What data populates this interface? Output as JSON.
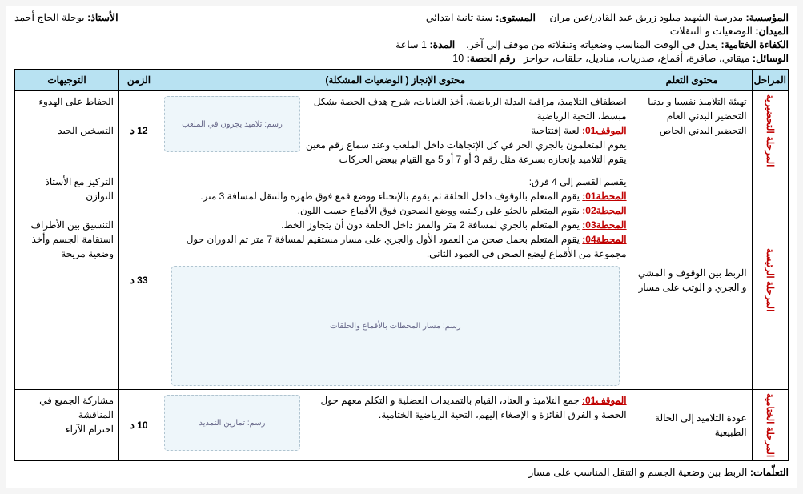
{
  "header": {
    "school_label": "المؤسسة:",
    "school_value": "مدرسة الشهيد ميلود زريق عبد القادر/عين مران",
    "level_label": "المستوى:",
    "level_value": "سنة ثانية ابتدائي",
    "teacher_label": "الأستاذ:",
    "teacher_value": "بوجلة الحاج أحمد",
    "domain_label": "الميدان:",
    "domain_value": "الوضعيات و التنقلات",
    "competency_label": "الكفاءة الختامية:",
    "competency_value": "يعدل في الوقت المناسب وضعياته وتنقلاته من موقف إلى آخر.",
    "duration_label": "المدة:",
    "duration_value": "1 ساعة",
    "tools_label": "الوسائل:",
    "tools_value": "ميقاتي، صافرة، أقماع، صدريات، مناديل، حلقات، حواجز",
    "session_no_label": "رقم الحصة:",
    "session_no_value": "10"
  },
  "table": {
    "headers": {
      "phase": "المراحل",
      "content": "محتوى التعلم",
      "main": "محتوى الإنجاز ( الوضعيات المشكلة)",
      "time": "الزمن",
      "guides": "التوجيهات"
    },
    "row1": {
      "phase": "المرحلة التحضيرية",
      "content": "تهيئة التلاميذ نفسيا و بدنيا\nالتحضير البدني العام\nالتحضير البدني الخاص",
      "main_intro": "اصطفاف التلاميذ، مراقبة البدلة الرياضية، أخذ الغيابات، شرح هدف الحصة بشكل مبسط، التحية الرياضية",
      "main_label": "الموقف01:",
      "main_label_text": "لعبة إفتتاحية",
      "main_body": "يقوم المتعلمون بالجري الحر في كل الإتجاهات داخل الملعب وعند سماع رقم معين يقوم التلاميذ بإنجازه بسرعة مثل رقم 3 أو 7 أو 5 مع القيام ببعض الحركات",
      "img_alt": "رسم: تلاميذ يجرون في الملعب",
      "time": "12 د",
      "guides": "الحفاظ على الهدوء\n\nالتسخين الجيد"
    },
    "row2": {
      "phase": "المرحلة الرئيسة",
      "content": "الربط بين الوقوف و المشي و الجري و الوثب على مسار",
      "main_intro": "يقسم القسم إلى 4 فرق:",
      "st1_label": "المحطة01:",
      "st1_text": "يقوم المتعلم بالوقوف داخل الحلقة ثم يقوم بالإنحناء ووضع قمع فوق ظهره والتنقل لمسافة 3 متر.",
      "st2_label": "المحطة02:",
      "st2_text": "يقوم المتعلم بالجثو على ركبتيه ووضع الصحون فوق الأقماع حسب اللون.",
      "st3_label": "المحطة03:",
      "st3_text": "يقوم المتعلم بالجري لمسافة 2 متر والقفز داخل الحلقة دون أن يتجاوز الخط.",
      "st4_label": "المحطة04:",
      "st4_text": "يقوم المتعلم بحمل صحن من العمود الأول والجري على مسار مستقيم لمسافة 7 متر ثم الدوران حول مجموعة من الأقماع ليضع الصحن في العمود الثاني.",
      "img_alt": "رسم: مسار المحطات بالأقماع والحلقات",
      "time": "33 د",
      "guides": "التركيز مع الأستاذ\nالتوازن\n\nالتنسيق بين الأطراف\nاستقامة الجسم وأخذ وضعية مريحة"
    },
    "row3": {
      "phase": "المرحلة الختامية",
      "content": "عودة التلاميذ إلى الحالة الطبيعية",
      "main_label": "الموقف01:",
      "main_text": "جمع التلاميذ و العتاد، القيام بالتمديدات العضلية و التكلم معهم حول الحصة و الفرق الفائزة و الإصغاء إليهم، التحية الرياضية الختامية.",
      "img_alt": "رسم: تمارين التمديد",
      "time": "10 د",
      "guides": "مشاركة الجميع في المناقشة\nاحترام الآراء"
    }
  },
  "footer": {
    "label": "التعلّمات:",
    "value": "الربط بين وضعية الجسم و التنقل المناسب على مسار"
  }
}
